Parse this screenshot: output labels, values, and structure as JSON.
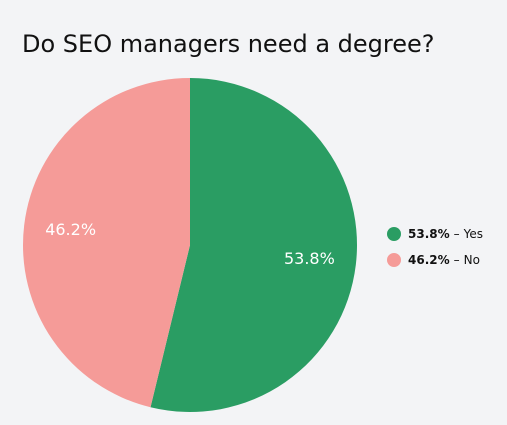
{
  "chart_data": {
    "type": "pie",
    "title": "Do SEO managers need a degree?",
    "categories": [
      "Yes",
      "No"
    ],
    "values": [
      53.8,
      46.2
    ],
    "value_labels": [
      "53.8%",
      "46.2%"
    ],
    "colors": [
      "#2a9d63",
      "#f59b98"
    ],
    "legend_separator": "–",
    "legend_position": "right"
  }
}
